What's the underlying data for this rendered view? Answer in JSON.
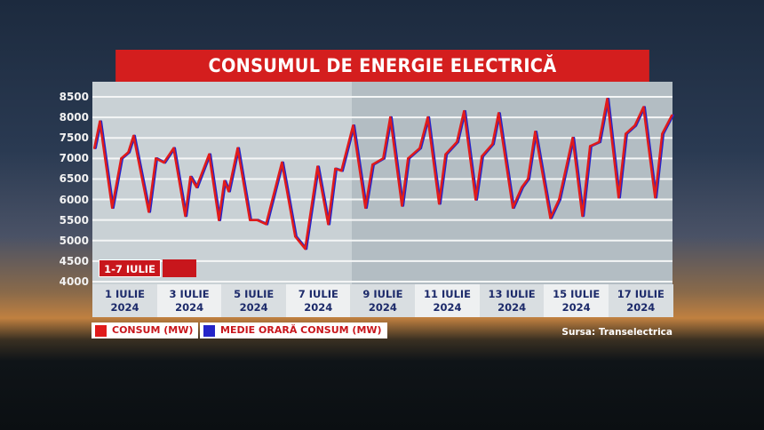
{
  "chart_data": {
    "type": "line",
    "title": "CONSUMUL DE ENERGIE ELECTRICĂ",
    "ylim": [
      4000,
      8500
    ],
    "yticks": [
      8500,
      8000,
      7500,
      7000,
      6500,
      6000,
      5500,
      5000,
      4500,
      4000
    ],
    "xlabels": [
      [
        "1 IULIE",
        "2024"
      ],
      [
        "3 IULIE",
        "2024"
      ],
      [
        "5 IULIE",
        "2024"
      ],
      [
        "7 IULIE",
        "2024"
      ],
      [
        "9 IULIE",
        "2024"
      ],
      [
        "11 IULIE",
        "2024"
      ],
      [
        "13 IULIE",
        "2024"
      ],
      [
        "15 IULIE",
        "2024"
      ],
      [
        "17 IULIE",
        "2024"
      ]
    ],
    "xlim_days_july": [
      1,
      19
    ],
    "grid": true,
    "period_label": "1-7 IULIE",
    "source": "Sursa: Transelectrica",
    "series": [
      {
        "name": "CONSUM (MW)",
        "color": "#e01b1b",
        "x": [
          1.05,
          1.22,
          1.6,
          1.88,
          2.1,
          2.26,
          2.73,
          2.95,
          3.2,
          3.5,
          3.86,
          4.02,
          4.21,
          4.6,
          4.9,
          5.07,
          5.2,
          5.48,
          5.86,
          6.08,
          6.36,
          6.85,
          7.26,
          7.57,
          7.95,
          8.28,
          8.5,
          8.69,
          9.05,
          9.43,
          9.65,
          9.98,
          10.2,
          10.56,
          10.75,
          11.11,
          11.36,
          11.71,
          11.91,
          12.26,
          12.48,
          12.84,
          13.03,
          13.36,
          13.55,
          13.99,
          14.27,
          14.46,
          14.68,
          15.15,
          15.42,
          15.84,
          16.14,
          16.38,
          16.66,
          16.91,
          17.26,
          17.48,
          17.76,
          18.03,
          18.39,
          18.61,
          18.91
        ],
        "y": [
          7250,
          7900,
          5800,
          7000,
          7150,
          7550,
          5700,
          7000,
          6900,
          7250,
          5600,
          6550,
          6300,
          7100,
          5500,
          6450,
          6200,
          7250,
          5500,
          5500,
          5400,
          6900,
          5100,
          4800,
          6800,
          5400,
          6750,
          6700,
          7800,
          5800,
          6850,
          7000,
          8000,
          5850,
          7000,
          7250,
          8000,
          5900,
          7100,
          7400,
          8150,
          6000,
          7050,
          7350,
          8100,
          5800,
          6300,
          6500,
          7650,
          5550,
          6000,
          7500,
          5600,
          7300,
          7400,
          8450,
          6050,
          7600,
          7800,
          8250,
          6050,
          7600,
          8050
        ]
      },
      {
        "name": "MEDIE ORARĂ CONSUM (MW)",
        "color": "#2424c8",
        "x": [
          1.05,
          1.22,
          1.6,
          1.88,
          2.1,
          2.26,
          2.73,
          2.95,
          3.2,
          3.5,
          3.86,
          4.02,
          4.21,
          4.6,
          4.9,
          5.07,
          5.2,
          5.48,
          5.86,
          6.08,
          6.36,
          6.85,
          7.26,
          7.57,
          7.95,
          8.28,
          8.5,
          8.69,
          9.05,
          9.43,
          9.65,
          9.98,
          10.2,
          10.56,
          10.75,
          11.11,
          11.36,
          11.71,
          11.91,
          12.26,
          12.48,
          12.84,
          13.03,
          13.36,
          13.55,
          13.99,
          14.27,
          14.46,
          14.68,
          15.15,
          15.42,
          15.84,
          16.14,
          16.38,
          16.66,
          16.91,
          17.26,
          17.48,
          17.76,
          18.03,
          18.39,
          18.61,
          18.91
        ],
        "y": [
          7250,
          7900,
          5800,
          7000,
          7150,
          7550,
          5700,
          7000,
          6900,
          7250,
          5600,
          6550,
          6300,
          7100,
          5500,
          6450,
          6200,
          7250,
          5500,
          5500,
          5400,
          6900,
          5100,
          4800,
          6800,
          5400,
          6750,
          6700,
          7800,
          5800,
          6850,
          7000,
          8000,
          5850,
          7000,
          7250,
          8000,
          5900,
          7100,
          7400,
          8150,
          6000,
          7050,
          7350,
          8100,
          5800,
          6300,
          6500,
          7650,
          5550,
          6000,
          7500,
          5600,
          7300,
          7400,
          8450,
          6050,
          7600,
          7800,
          8250,
          6050,
          7600,
          8050
        ]
      }
    ]
  }
}
